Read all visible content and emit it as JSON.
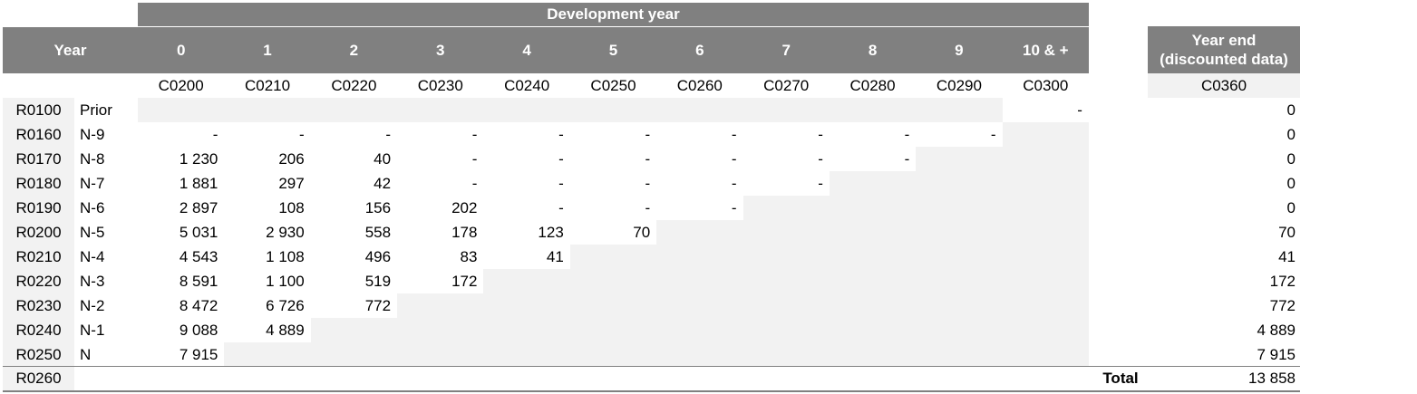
{
  "header": {
    "development_year": "Development year",
    "year": "Year",
    "dev_years": [
      "0",
      "1",
      "2",
      "3",
      "4",
      "5",
      "6",
      "7",
      "8",
      "9",
      "10 & +"
    ],
    "year_end_line1": "Year end",
    "year_end_line2": "(discounted data)"
  },
  "column_codes": [
    "C0200",
    "C0210",
    "C0220",
    "C0230",
    "C0240",
    "C0250",
    "C0260",
    "C0270",
    "C0280",
    "C0290",
    "C0300"
  ],
  "year_end_code": "C0360",
  "rows": [
    {
      "code": "R0100",
      "label": "Prior",
      "values": [
        "",
        "",
        "",
        "",
        "",
        "",
        "",
        "",
        "",
        "",
        "-"
      ],
      "year_end": "0"
    },
    {
      "code": "R0160",
      "label": "N-9",
      "values": [
        "-",
        "-",
        "-",
        "-",
        "-",
        "-",
        "-",
        "-",
        "-",
        "-"
      ],
      "year_end": "0"
    },
    {
      "code": "R0170",
      "label": "N-8",
      "values": [
        "1 230",
        "206",
        "40",
        "-",
        "-",
        "-",
        "-",
        "-",
        "-"
      ],
      "year_end": "0"
    },
    {
      "code": "R0180",
      "label": "N-7",
      "values": [
        "1 881",
        "297",
        "42",
        "-",
        "-",
        "-",
        "-",
        "-"
      ],
      "year_end": "0"
    },
    {
      "code": "R0190",
      "label": "N-6",
      "values": [
        "2 897",
        "108",
        "156",
        "202",
        "-",
        "-",
        "-"
      ],
      "year_end": "0"
    },
    {
      "code": "R0200",
      "label": "N-5",
      "values": [
        "5 031",
        "2 930",
        "558",
        "178",
        "123",
        "70"
      ],
      "year_end": "70"
    },
    {
      "code": "R0210",
      "label": "N-4",
      "values": [
        "4 543",
        "1 108",
        "496",
        "83",
        "41"
      ],
      "year_end": "41"
    },
    {
      "code": "R0220",
      "label": "N-3",
      "values": [
        "8 591",
        "1 100",
        "519",
        "172"
      ],
      "year_end": "172"
    },
    {
      "code": "R0230",
      "label": "N-2",
      "values": [
        "8 472",
        "6 726",
        "772"
      ],
      "year_end": "772"
    },
    {
      "code": "R0240",
      "label": "N-1",
      "values": [
        "9 088",
        "4 889"
      ],
      "year_end": "4 889"
    },
    {
      "code": "R0250",
      "label": "N",
      "values": [
        "7 915"
      ],
      "year_end": "7 915"
    }
  ],
  "total": {
    "code": "R0260",
    "label": "Total",
    "value": "13 858"
  }
}
